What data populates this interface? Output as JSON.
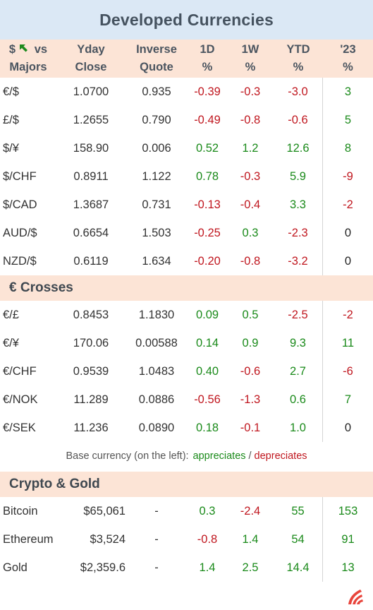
{
  "title": "Developed Currencies",
  "headers": {
    "pair_line1": "$",
    "pair_line1b": "vs",
    "pair_line2": "Majors",
    "yday_line1": "Yday",
    "yday_line2": "Close",
    "inv_line1": "Inverse",
    "inv_line2": "Quote",
    "d1_line1": "1D",
    "d1_line2": "%",
    "w1_line1": "1W",
    "w1_line2": "%",
    "ytd_line1": "YTD",
    "ytd_line2": "%",
    "y23_line1": "'23",
    "y23_line2": "%"
  },
  "majors": [
    {
      "pair": "€/$",
      "close": "1.0700",
      "inverse": "0.935",
      "d1": "-0.39",
      "w1": "-0.3",
      "ytd": "-3.0",
      "y23": "3"
    },
    {
      "pair": "£/$",
      "close": "1.2655",
      "inverse": "0.790",
      "d1": "-0.49",
      "w1": "-0.8",
      "ytd": "-0.6",
      "y23": "5"
    },
    {
      "pair": "$/¥",
      "close": "158.90",
      "inverse": "0.006",
      "d1": "0.52",
      "w1": "1.2",
      "ytd": "12.6",
      "y23": "8"
    },
    {
      "pair": "$/CHF",
      "close": "0.8911",
      "inverse": "1.122",
      "d1": "0.78",
      "w1": "-0.3",
      "ytd": "5.9",
      "y23": "-9"
    },
    {
      "pair": "$/CAD",
      "close": "1.3687",
      "inverse": "0.731",
      "d1": "-0.13",
      "w1": "-0.4",
      "ytd": "3.3",
      "y23": "-2"
    },
    {
      "pair": "AUD/$",
      "close": "0.6654",
      "inverse": "1.503",
      "d1": "-0.25",
      "w1": "0.3",
      "ytd": "-2.3",
      "y23": "0"
    },
    {
      "pair": "NZD/$",
      "close": "0.6119",
      "inverse": "1.634",
      "d1": "-0.20",
      "w1": "-0.8",
      "ytd": "-3.2",
      "y23": "0"
    }
  ],
  "crosses_title": "€ Crosses",
  "crosses": [
    {
      "pair": "€/£",
      "close": "0.8453",
      "inverse": "1.1830",
      "d1": "0.09",
      "w1": "0.5",
      "ytd": "-2.5",
      "y23": "-2"
    },
    {
      "pair": "€/¥",
      "close": "170.06",
      "inverse": "0.00588",
      "d1": "0.14",
      "w1": "0.9",
      "ytd": "9.3",
      "y23": "11"
    },
    {
      "pair": "€/CHF",
      "close": "0.9539",
      "inverse": "1.0483",
      "d1": "0.40",
      "w1": "-0.6",
      "ytd": "2.7",
      "y23": "-6"
    },
    {
      "pair": "€/NOK",
      "close": "11.289",
      "inverse": "0.0886",
      "d1": "-0.56",
      "w1": "-1.3",
      "ytd": "0.6",
      "y23": "7"
    },
    {
      "pair": "€/SEK",
      "close": "11.236",
      "inverse": "0.0890",
      "d1": "0.18",
      "w1": "-0.1",
      "ytd": "1.0",
      "y23": "0"
    }
  ],
  "note": {
    "prefix": "Base currency (on the left):",
    "appreciates": "appreciates",
    "sep": "/",
    "depreciates": "depreciates"
  },
  "crypto_title": "Crypto & Gold",
  "crypto": [
    {
      "pair": "Bitcoin",
      "close": "$65,061",
      "inverse": "-",
      "d1": "0.3",
      "w1": "-2.4",
      "ytd": "55",
      "y23": "153"
    },
    {
      "pair": "Ethereum",
      "close": "$3,524",
      "inverse": "-",
      "d1": "-0.8",
      "w1": "1.4",
      "ytd": "54",
      "y23": "91"
    },
    {
      "pair": "Gold",
      "close": "$2,359.6",
      "inverse": "-",
      "d1": "1.4",
      "w1": "2.5",
      "ytd": "14.4",
      "y23": "13"
    }
  ],
  "colors": {
    "positive": "#1a8a1a",
    "negative": "#c0171f",
    "header_bg": "#fce4d6",
    "title_bg": "#dbe8f5"
  },
  "icons": {
    "header_arrow": "arrow-up-left-icon",
    "logo": "brand-logo-icon"
  }
}
